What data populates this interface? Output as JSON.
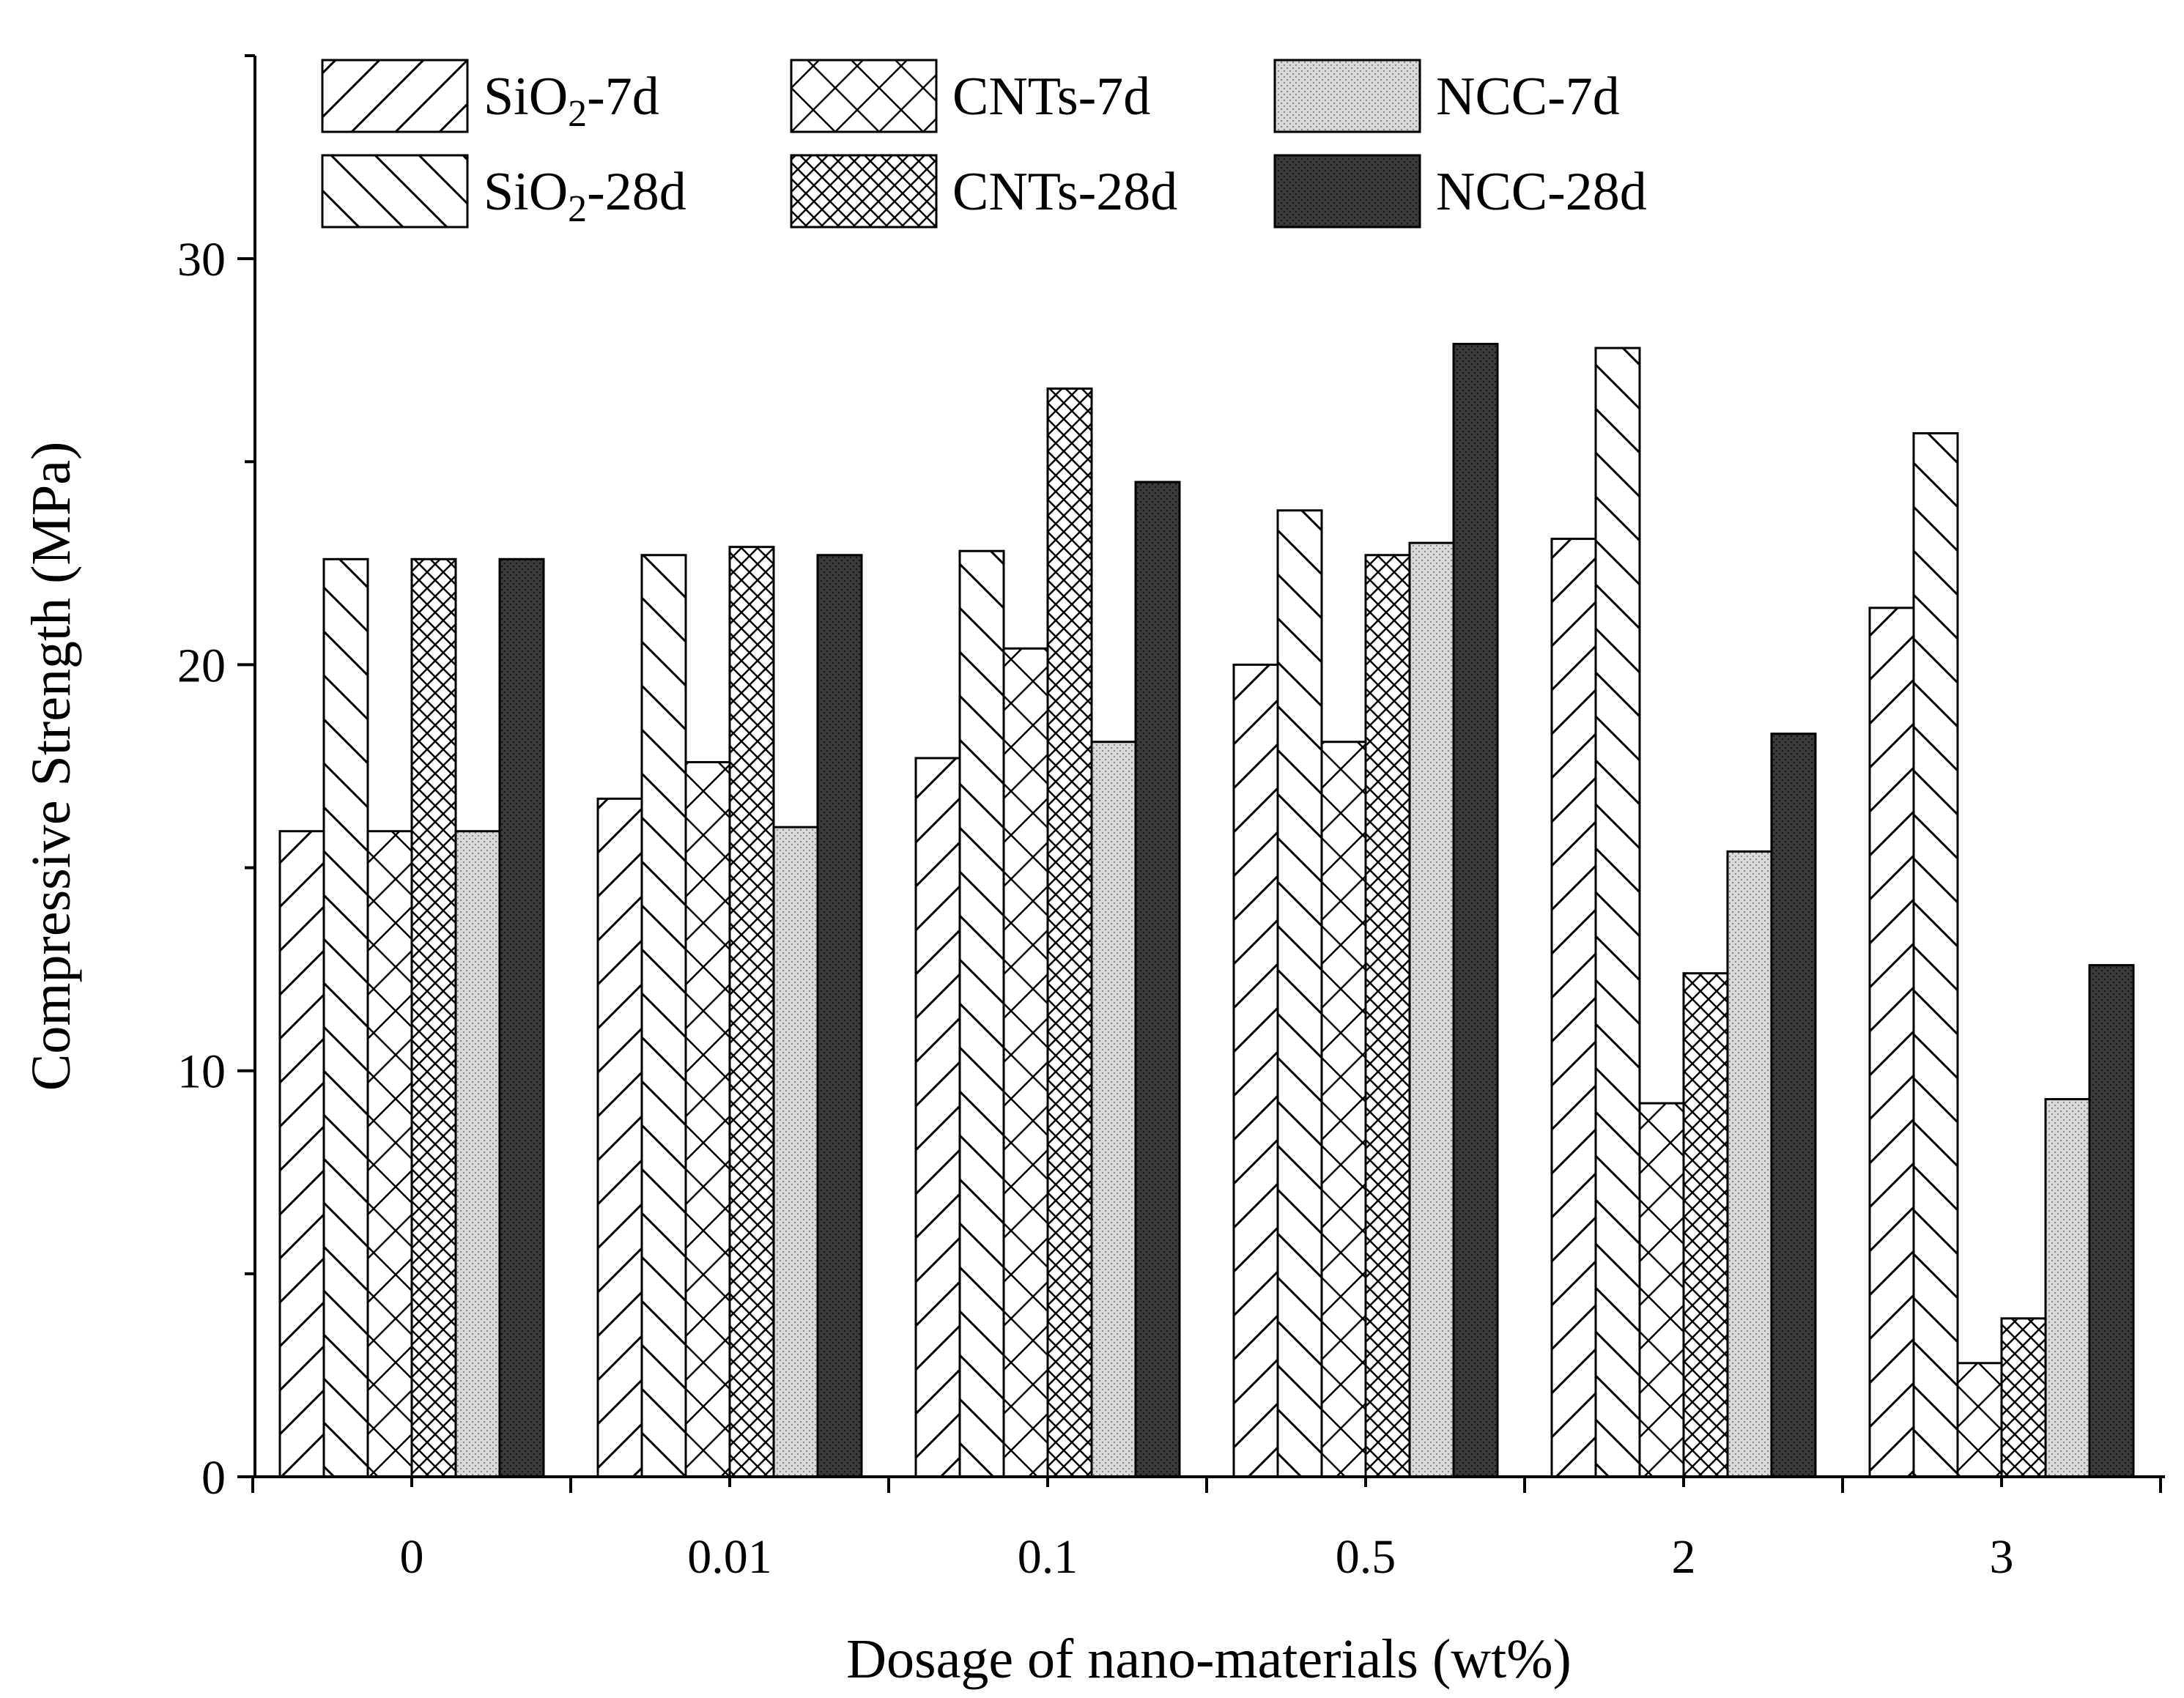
{
  "chart_data": {
    "type": "bar",
    "title": "",
    "xlabel": "Dosage of  nano-materials (wt%)",
    "ylabel": "Compressive Strength (MPa)",
    "categories": [
      "0",
      "0.01",
      "0.1",
      "0.5",
      "2",
      "3"
    ],
    "ylim": [
      0,
      35
    ],
    "yticks": [
      0,
      10,
      20,
      30
    ],
    "yticks_minor": [
      5,
      15,
      25,
      35
    ],
    "grid": false,
    "legend_position": "top-left",
    "series": [
      {
        "name": "SiO2-7d",
        "legend_main": "SiO",
        "legend_sub": "2",
        "legend_suffix": "-7d",
        "pattern": "diag-forward",
        "values": [
          15.9,
          16.7,
          17.7,
          20.0,
          23.1,
          21.4
        ]
      },
      {
        "name": "SiO2-28d",
        "legend_main": "SiO",
        "legend_sub": "2",
        "legend_suffix": "-28d",
        "pattern": "diag-back",
        "values": [
          22.6,
          22.7,
          22.8,
          23.8,
          27.8,
          25.7
        ]
      },
      {
        "name": "CNTs-7d",
        "legend_main": "CNTs-7d",
        "legend_sub": "",
        "legend_suffix": "",
        "pattern": "cross-sparse",
        "values": [
          15.9,
          17.6,
          20.4,
          18.1,
          9.2,
          2.8
        ]
      },
      {
        "name": "CNTs-28d",
        "legend_main": "CNTs-28d",
        "legend_sub": "",
        "legend_suffix": "",
        "pattern": "cross-dense",
        "values": [
          22.6,
          22.9,
          26.8,
          22.7,
          12.4,
          3.9
        ]
      },
      {
        "name": "NCC-7d",
        "legend_main": "NCC-7d",
        "legend_sub": "",
        "legend_suffix": "",
        "pattern": "light-dots",
        "values": [
          15.9,
          16.0,
          18.1,
          23.0,
          15.4,
          9.3
        ]
      },
      {
        "name": "NCC-28d",
        "legend_main": "NCC-28d",
        "legend_sub": "",
        "legend_suffix": "",
        "pattern": "dark-dots",
        "values": [
          22.6,
          22.7,
          24.5,
          27.9,
          18.3,
          12.6
        ]
      }
    ]
  }
}
